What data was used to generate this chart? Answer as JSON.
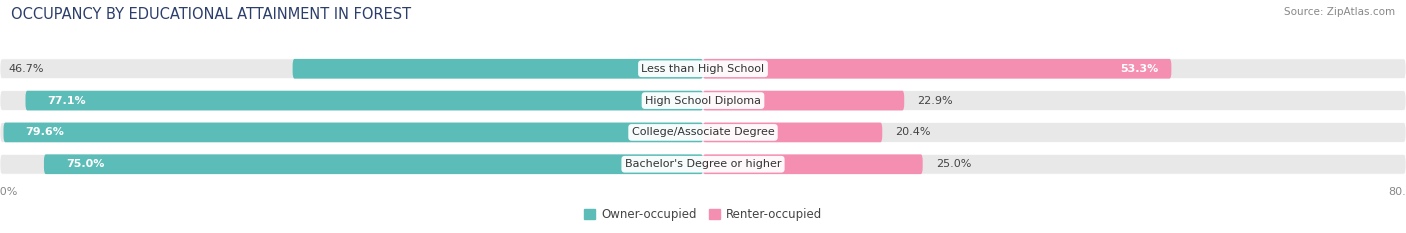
{
  "title": "OCCUPANCY BY EDUCATIONAL ATTAINMENT IN FOREST",
  "source": "Source: ZipAtlas.com",
  "categories": [
    "Less than High School",
    "High School Diploma",
    "College/Associate Degree",
    "Bachelor's Degree or higher"
  ],
  "owner_values": [
    46.7,
    77.1,
    79.6,
    75.0
  ],
  "renter_values": [
    53.3,
    22.9,
    20.4,
    25.0
  ],
  "owner_color": "#5bbcb8",
  "renter_color": "#f48fb1",
  "bar_height": 0.62,
  "xlim_left": -80.0,
  "xlim_right": 80.0,
  "background_color": "#ffffff",
  "bar_bg_color": "#e8e8e8",
  "title_fontsize": 10.5,
  "label_fontsize": 8,
  "tick_fontsize": 8,
  "source_fontsize": 7.5,
  "owner_label_white_threshold": 55,
  "renter_label_white_threshold": 35
}
